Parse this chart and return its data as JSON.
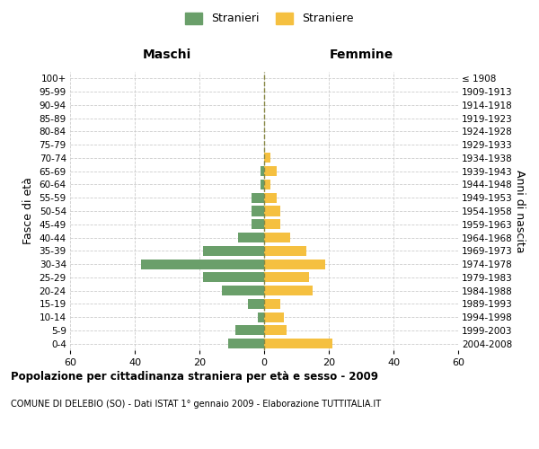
{
  "age_groups": [
    "0-4",
    "5-9",
    "10-14",
    "15-19",
    "20-24",
    "25-29",
    "30-34",
    "35-39",
    "40-44",
    "45-49",
    "50-54",
    "55-59",
    "60-64",
    "65-69",
    "70-74",
    "75-79",
    "80-84",
    "85-89",
    "90-94",
    "95-99",
    "100+"
  ],
  "birth_years": [
    "2004-2008",
    "1999-2003",
    "1994-1998",
    "1989-1993",
    "1984-1988",
    "1979-1983",
    "1974-1978",
    "1969-1973",
    "1964-1968",
    "1959-1963",
    "1954-1958",
    "1949-1953",
    "1944-1948",
    "1939-1943",
    "1934-1938",
    "1929-1933",
    "1924-1928",
    "1919-1923",
    "1914-1918",
    "1909-1913",
    "≤ 1908"
  ],
  "males": [
    11,
    9,
    2,
    5,
    13,
    19,
    38,
    19,
    8,
    4,
    4,
    4,
    1,
    1,
    0,
    0,
    0,
    0,
    0,
    0,
    0
  ],
  "females": [
    21,
    7,
    6,
    5,
    15,
    14,
    19,
    13,
    8,
    5,
    5,
    4,
    2,
    4,
    2,
    0,
    0,
    0,
    0,
    0,
    0
  ],
  "male_color": "#6a9f6a",
  "female_color": "#f5c040",
  "background_color": "#ffffff",
  "grid_color": "#cccccc",
  "title": "Popolazione per cittadinanza straniera per età e sesso - 2009",
  "subtitle": "COMUNE DI DELEBIO (SO) - Dati ISTAT 1° gennaio 2009 - Elaborazione TUTTITALIA.IT",
  "xlabel_left": "Maschi",
  "xlabel_right": "Femmine",
  "ylabel_left": "Fasce di età",
  "ylabel_right": "Anni di nascita",
  "legend_male": "Stranieri",
  "legend_female": "Straniere",
  "xlim": 60
}
